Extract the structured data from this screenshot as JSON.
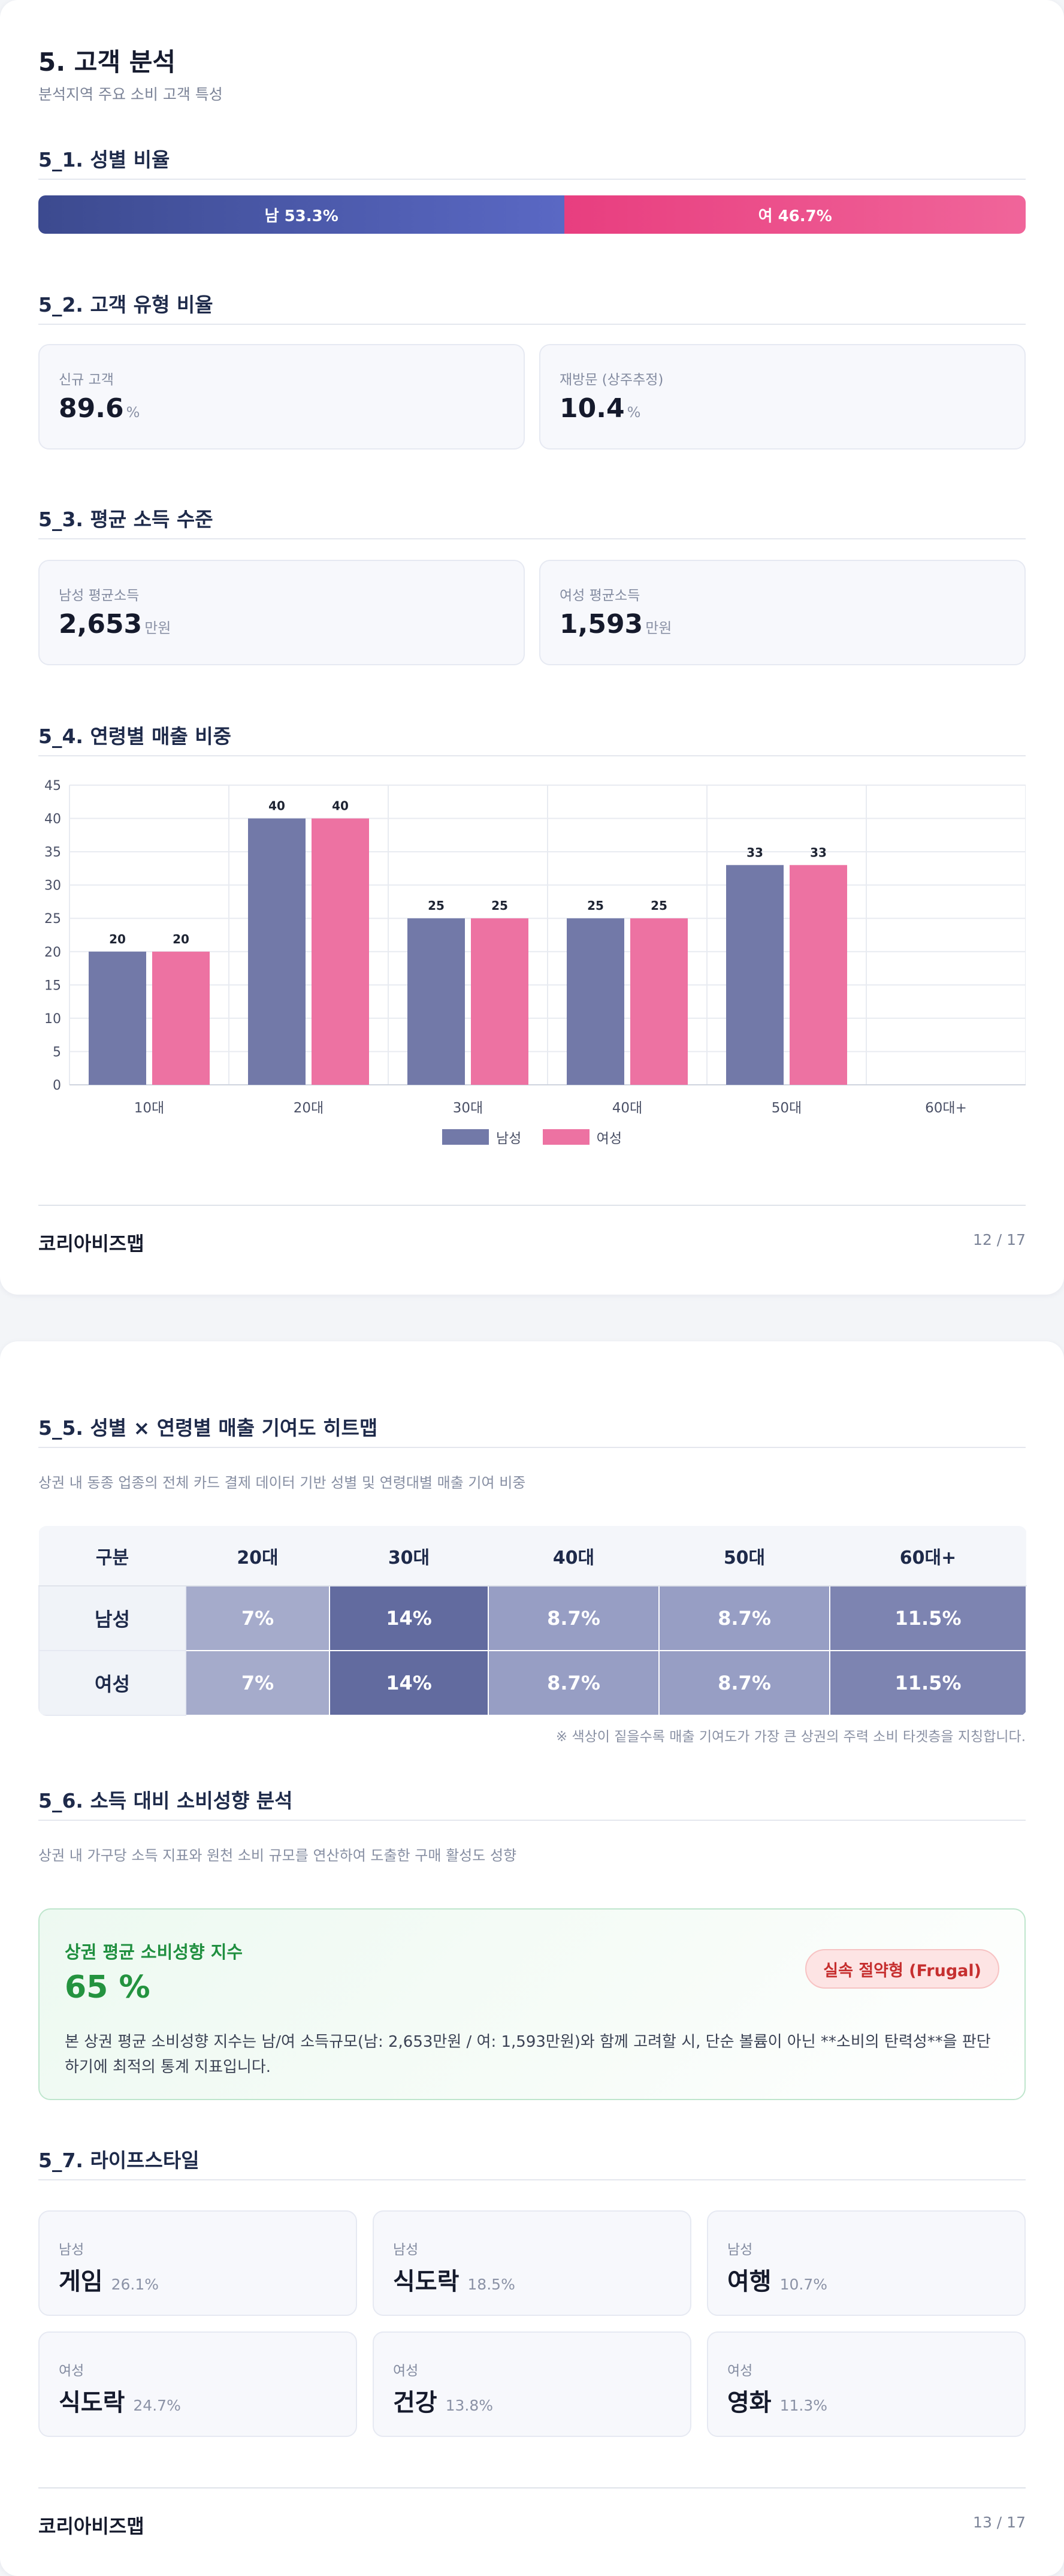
{
  "page1": {
    "title": "5. 고객 분석",
    "subtitle": "분석지역 주요 소비 고객 특성",
    "gender": {
      "heading": "5_1. 성별 비율",
      "male_label": "남 53.3%",
      "female_label": "여 46.7%",
      "male_share": 53.3,
      "male_color": "#3c4a8f",
      "female_color": "#e83e7f"
    },
    "customer_type": {
      "heading": "5_2. 고객 유형 비율",
      "new": {
        "label": "신규 고객",
        "value": "89.6",
        "unit": "%"
      },
      "returning": {
        "label": "재방문 (상주추정)",
        "value": "10.4",
        "unit": "%"
      }
    },
    "income": {
      "heading": "5_3. 평균 소득 수준",
      "male": {
        "label": "남성 평균소득",
        "value": "2,653",
        "unit": "만원"
      },
      "female": {
        "label": "여성 평균소득",
        "value": "1,593",
        "unit": "만원"
      }
    },
    "age_sales": {
      "heading": "5_4. 연령별 매출 비중"
    },
    "footer": {
      "brand": "코리아비즈맵",
      "page": "12 / 17"
    }
  },
  "chart_data": {
    "type": "bar",
    "title": "",
    "xlabel": "",
    "ylabel": "",
    "categories": [
      "10대",
      "20대",
      "30대",
      "40대",
      "50대",
      "60대+"
    ],
    "series": [
      {
        "name": "남성",
        "values": [
          20,
          40,
          25,
          25,
          33,
          null
        ],
        "color": "#7279a8"
      },
      {
        "name": "여성",
        "values": [
          20,
          40,
          25,
          25,
          33,
          null
        ],
        "color": "#ed72a2"
      }
    ],
    "ylim": [
      0,
      45
    ],
    "yticks": [
      0,
      5,
      10,
      15,
      20,
      25,
      30,
      35,
      40,
      45
    ],
    "grid": true,
    "legend": "bottom-center",
    "data_labels": true
  },
  "page2": {
    "heatmap": {
      "heading": "5_5. 성별 × 연령별 매출 기여도 히트맵",
      "description": "상권 내 동종 업종의 전체 카드 결제 데이터 기반 성별 및 연령대별 매출 기여 비중",
      "columns": [
        "구분",
        "20대",
        "30대",
        "40대",
        "50대",
        "60대+"
      ],
      "rows": [
        {
          "label": "남성",
          "cells": [
            "7%",
            "14%",
            "8.7%",
            "8.7%",
            "11.5%"
          ]
        },
        {
          "label": "여성",
          "cells": [
            "7%",
            "14%",
            "8.7%",
            "8.7%",
            "11.5%"
          ]
        }
      ],
      "cell_colors": [
        "#a5abcb",
        "#626b9f",
        "#979ec4",
        "#979ec4",
        "#7d84b1"
      ],
      "note": "※ 색상이 짙을수록 매출 기여도가 가장 큰 상권의 주력 소비 타겟층을 지칭합니다."
    },
    "propensity": {
      "heading": "5_6. 소득 대비 소비성향 분석",
      "description": "상권 내 가구당 소득 지표와 원천 소비 규모를 연산하여 도출한 구매 활성도 성향",
      "card_title": "상권 평균 소비성향 지수",
      "value": "65 %",
      "badge": "실속 절약형 (Frugal)",
      "text": "본 상권 평균 소비성향 지수는 남/여 소득규모(남: 2,653만원 / 여: 1,593만원)와 함께 고려할 시, 단순 볼륨이 아닌 **소비의 탄력성**을 판단하기에 최적의 통계 지표입니다."
    },
    "lifestyle": {
      "heading": "5_7. 라이프스타일",
      "items": [
        {
          "gender": "남성",
          "name": "게임",
          "share": "26.1%"
        },
        {
          "gender": "남성",
          "name": "식도락",
          "share": "18.5%"
        },
        {
          "gender": "남성",
          "name": "여행",
          "share": "10.7%"
        },
        {
          "gender": "여성",
          "name": "식도락",
          "share": "24.7%"
        },
        {
          "gender": "여성",
          "name": "건강",
          "share": "13.8%"
        },
        {
          "gender": "여성",
          "name": "영화",
          "share": "11.3%"
        }
      ]
    },
    "footer": {
      "brand": "코리아비즈맵",
      "page": "13 / 17"
    }
  }
}
